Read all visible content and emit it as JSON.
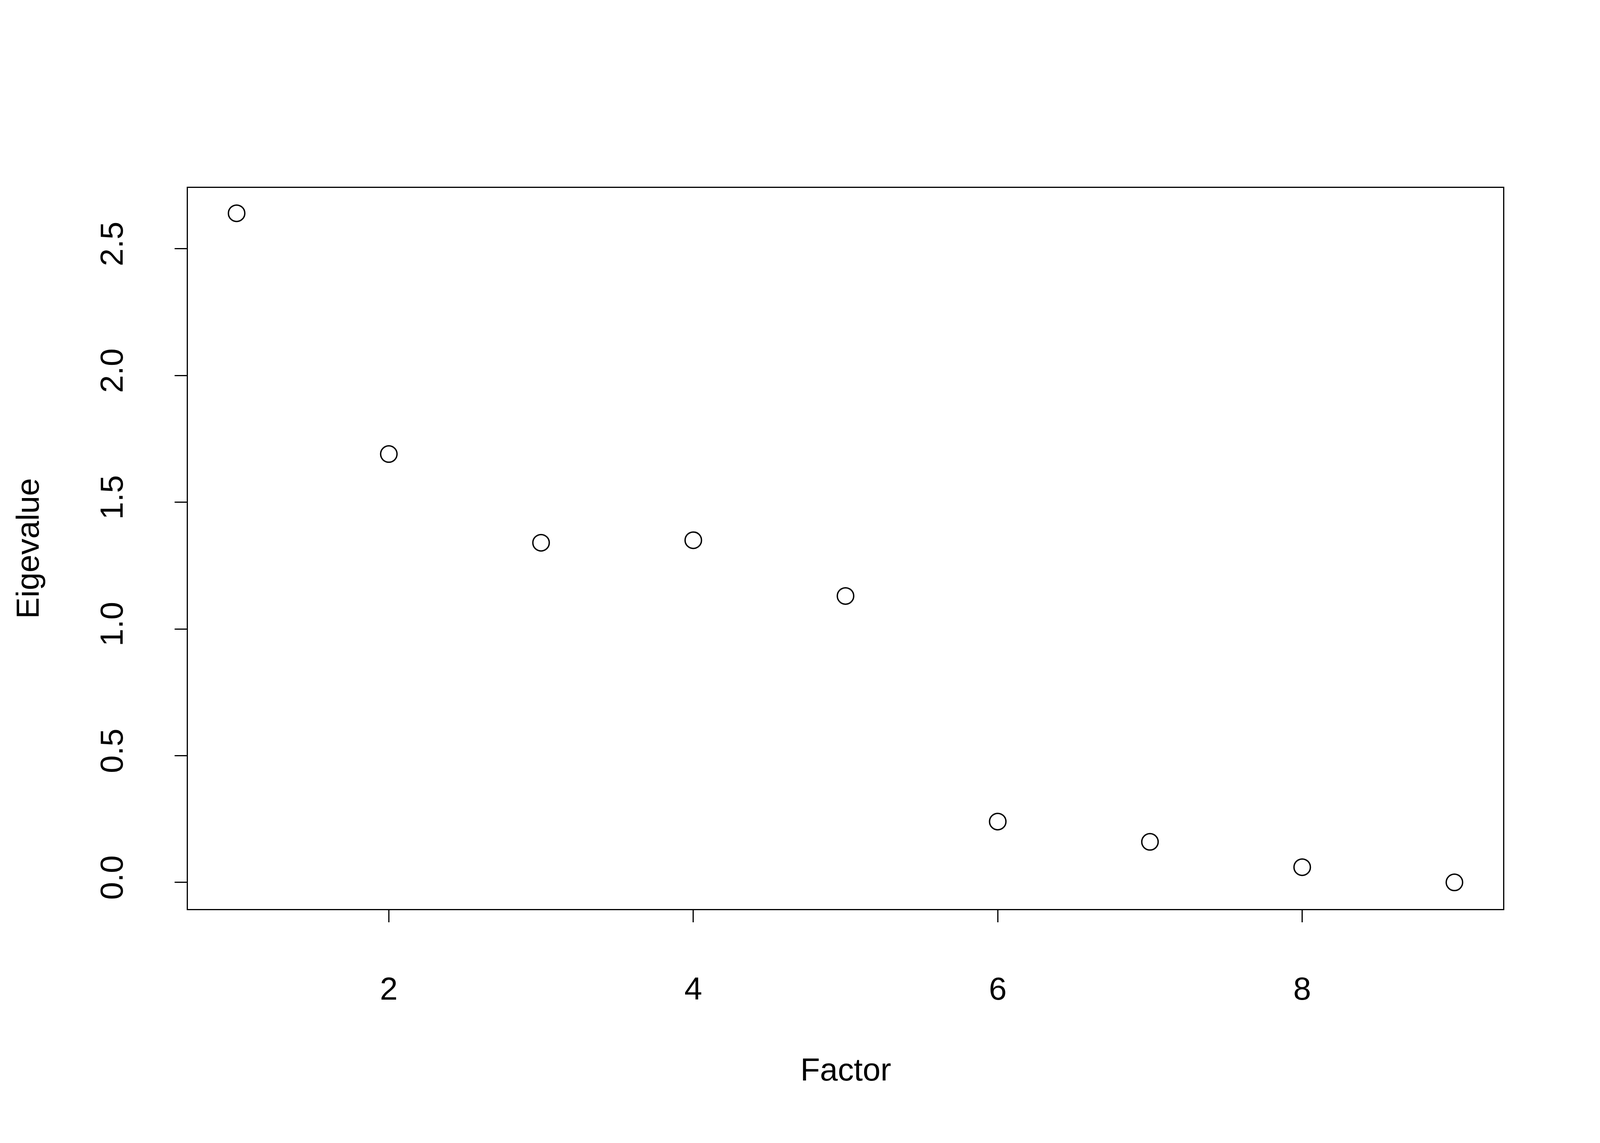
{
  "chart_data": {
    "type": "scatter",
    "x_label": "Factor",
    "y_label": "Eigevalue",
    "x": [
      1,
      2,
      3,
      4,
      5,
      6,
      7,
      8,
      9
    ],
    "values": [
      2.64,
      1.69,
      1.34,
      1.35,
      1.13,
      0.24,
      0.16,
      0.06,
      0.0
    ],
    "color": "#000000",
    "marker": "circle-open",
    "xlim": [
      0.68,
      9.32
    ],
    "xticks": [
      2,
      4,
      6,
      8
    ],
    "ylim": [
      -0.105,
      2.74
    ],
    "yticks": [
      {
        "value": 0,
        "label": "0.0"
      },
      0.5,
      {
        "value": 1,
        "label": "1.0"
      },
      1.5,
      {
        "value": 2,
        "label": "2.0"
      },
      2.5
    ],
    "grid": false
  }
}
